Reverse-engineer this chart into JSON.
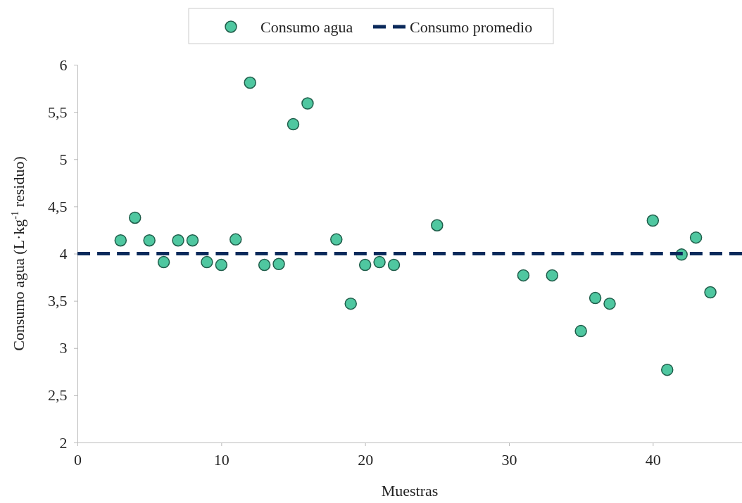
{
  "chart_data": {
    "type": "scatter",
    "xlabel": "Muestras",
    "ylabel": "Consumo agua (L·kg$^{-1}$ residuo)",
    "xlim": [
      0,
      46.2
    ],
    "xticks": [
      0,
      10,
      20,
      30,
      40
    ],
    "ylim": [
      2,
      6
    ],
    "yticks": [
      2,
      {
        "value": 2.5,
        "label": "2,5"
      },
      3,
      {
        "value": 3.5,
        "label": "3,5"
      },
      4,
      {
        "value": 4.5,
        "label": "4,5"
      },
      5,
      {
        "value": 5.5,
        "label": "5,5"
      },
      6
    ],
    "legend": "top",
    "grid": false,
    "series": [
      {
        "name": "Consumo agua",
        "type": "scatter",
        "marker": "circle",
        "color": "#4fc7a0",
        "x": [
          3,
          4,
          5,
          6,
          7,
          8,
          9,
          10,
          11,
          12,
          13,
          14,
          15,
          16,
          18,
          19,
          20,
          21,
          22,
          25,
          31,
          33,
          35,
          36,
          37,
          40,
          41,
          42,
          43,
          44
        ],
        "values": [
          4.14,
          4.38,
          4.14,
          3.91,
          4.14,
          4.14,
          3.91,
          3.88,
          4.15,
          5.81,
          3.88,
          3.89,
          5.37,
          5.59,
          4.15,
          3.47,
          3.88,
          3.91,
          3.88,
          4.3,
          3.77,
          3.77,
          3.18,
          3.53,
          3.47,
          4.35,
          2.77,
          3.99,
          4.17,
          3.59
        ]
      },
      {
        "name": "Consumo promedio",
        "type": "line",
        "line_style": "dashed",
        "color": "#0b2a5b",
        "x": [
          0,
          46.2
        ],
        "values": [
          4,
          4
        ]
      }
    ]
  }
}
